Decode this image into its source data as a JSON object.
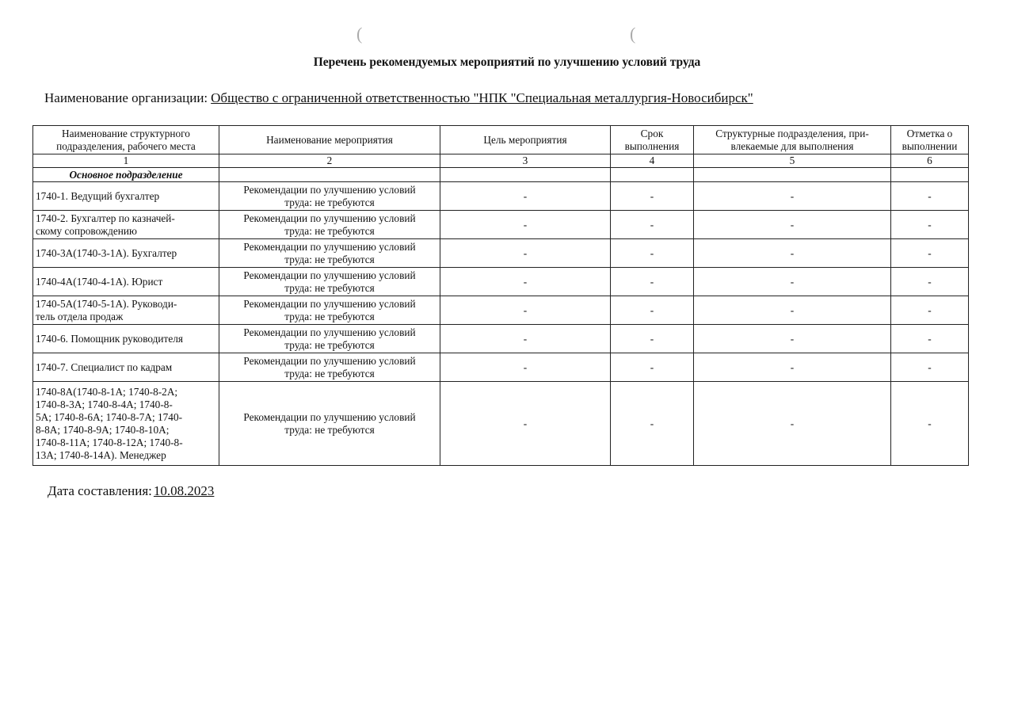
{
  "title": "Перечень рекомендуемых мероприятий по улучшению условий труда",
  "organization": {
    "label": "Наименование организации:",
    "value": "Общество с ограниченной ответственностью \"НПК \"Специальная металлургия-Новосибирск\""
  },
  "table": {
    "headers": [
      "Наименование структурного\nподразделения, рабочего места",
      "Наименование мероприятия",
      "Цель мероприятия",
      "Срок\nвыполнения",
      "Структурные подразделения, при-\nвлекаемые для выполнения",
      "Отметка о\nвыполнении"
    ],
    "numbers": [
      "1",
      "2",
      "3",
      "4",
      "5",
      "6"
    ],
    "section": "Основное подразделение",
    "rows": [
      {
        "place": "1740-1. Ведущий бухгалтер",
        "measure": "Рекомендации по улучшению условий\nтруда: не требуются",
        "goal": "-",
        "term": "-",
        "units": "-",
        "mark": "-"
      },
      {
        "place": "1740-2. Бухгалтер по казначей-\nскому сопровождению",
        "measure": "Рекомендации по улучшению условий\nтруда: не требуются",
        "goal": "-",
        "term": "-",
        "units": "-",
        "mark": "-"
      },
      {
        "place": "1740-3А(1740-3-1А). Бухгалтер",
        "measure": "Рекомендации по улучшению условий\nтруда: не требуются",
        "goal": "-",
        "term": "-",
        "units": "-",
        "mark": "-"
      },
      {
        "place": "1740-4А(1740-4-1А). Юрист",
        "measure": "Рекомендации по улучшению условий\nтруда: не требуются",
        "goal": "-",
        "term": "-",
        "units": "-",
        "mark": "-"
      },
      {
        "place": "1740-5А(1740-5-1А). Руководи-\nтель отдела продаж",
        "measure": "Рекомендации по улучшению условий\nтруда: не требуются",
        "goal": "-",
        "term": "-",
        "units": "-",
        "mark": "-"
      },
      {
        "place": "1740-6. Помощник руководителя",
        "measure": "Рекомендации по улучшению условий\nтруда: не требуются",
        "goal": "-",
        "term": "-",
        "units": "-",
        "mark": "-"
      },
      {
        "place": "1740-7. Специалист по кадрам",
        "measure": "Рекомендации по улучшению условий\nтруда: не требуются",
        "goal": "-",
        "term": "-",
        "units": "-",
        "mark": "-"
      },
      {
        "place": "1740-8А(1740-8-1А; 1740-8-2А;\n1740-8-3А; 1740-8-4А; 1740-8-\n5А; 1740-8-6А; 1740-8-7А; 1740-\n8-8А; 1740-8-9А; 1740-8-10А;\n1740-8-11А; 1740-8-12А; 1740-8-\n13А; 1740-8-14А). Менеджер",
        "measure": "Рекомендации по улучшению условий\nтруда: не требуются",
        "goal": "-",
        "term": "-",
        "units": "-",
        "mark": "-"
      }
    ]
  },
  "date": {
    "label": "Дата составления:",
    "value": "10.08.2023"
  }
}
